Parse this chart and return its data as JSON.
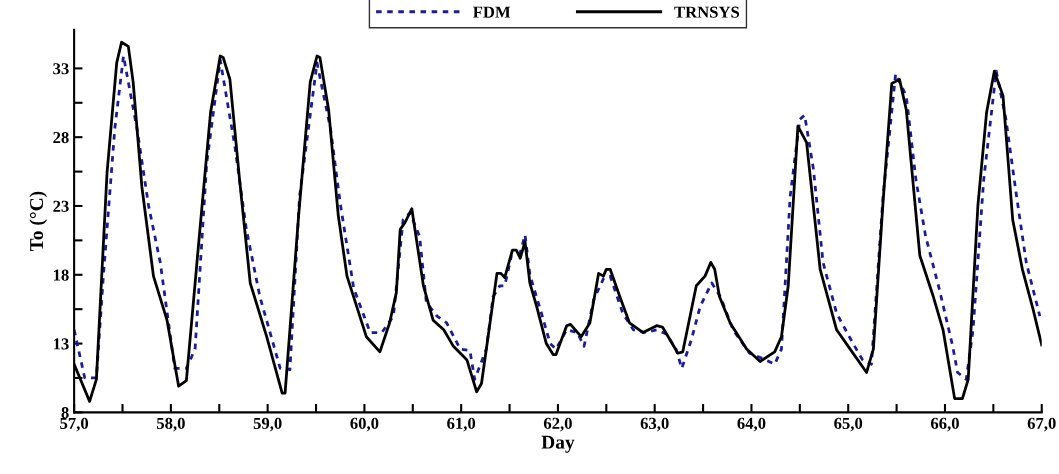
{
  "chart_data": {
    "type": "line",
    "xlabel": "Day",
    "ylabel": "To (°C)",
    "legend": "top",
    "grid": false,
    "xlim": [
      57.0,
      67.0
    ],
    "ylim": [
      8,
      35.8
    ],
    "xticks": [
      {
        "value": 57,
        "label": "57,0"
      },
      {
        "value": 57.5,
        "label": null
      },
      {
        "value": 58,
        "label": "58,0"
      },
      {
        "value": 58.5,
        "label": null
      },
      {
        "value": 59,
        "label": "59,0"
      },
      {
        "value": 59.5,
        "label": null
      },
      {
        "value": 60,
        "label": "60,0"
      },
      {
        "value": 60.5,
        "label": null
      },
      {
        "value": 61,
        "label": "61,0"
      },
      {
        "value": 61.5,
        "label": null
      },
      {
        "value": 62,
        "label": "62,0"
      },
      {
        "value": 62.5,
        "label": null
      },
      {
        "value": 63,
        "label": "63,0"
      },
      {
        "value": 63.5,
        "label": null
      },
      {
        "value": 64,
        "label": "64,0"
      },
      {
        "value": 64.5,
        "label": null
      },
      {
        "value": 65,
        "label": "65,0"
      },
      {
        "value": 65.5,
        "label": null
      },
      {
        "value": 66,
        "label": "66,0"
      },
      {
        "value": 66.5,
        "label": null
      },
      {
        "value": 67,
        "label": "67,0"
      }
    ],
    "yticks": [
      8,
      {
        "value": 10.5,
        "label": null
      },
      13,
      {
        "value": 15.5,
        "label": null
      },
      18,
      {
        "value": 20.5,
        "label": null
      },
      23,
      {
        "value": 25.5,
        "label": null
      },
      28,
      {
        "value": 30.5,
        "label": null
      },
      33
    ],
    "series": [
      {
        "name": "FDM",
        "color": "#1c1c9a",
        "line_style": "dotted",
        "x": [
          57.0,
          57.11,
          57.23,
          57.3,
          57.42,
          57.51,
          57.65,
          57.77,
          57.89,
          58.04,
          58.16,
          58.25,
          58.37,
          58.51,
          58.66,
          58.78,
          58.92,
          59.13,
          59.23,
          59.33,
          59.51,
          59.65,
          59.75,
          59.89,
          60.06,
          60.18,
          60.3,
          60.4,
          60.47,
          60.57,
          60.64,
          60.75,
          60.85,
          60.99,
          61.09,
          61.14,
          61.26,
          61.33,
          61.4,
          61.45,
          61.52,
          61.61,
          61.66,
          61.71,
          61.83,
          61.92,
          61.98,
          62.09,
          62.2,
          62.27,
          62.37,
          62.47,
          62.54,
          62.67,
          62.78,
          62.91,
          63.02,
          63.12,
          63.22,
          63.28,
          63.38,
          63.47,
          63.59,
          63.68,
          63.81,
          63.98,
          64.12,
          64.24,
          64.31,
          64.4,
          64.5,
          64.55,
          64.64,
          64.74,
          64.88,
          65.05,
          65.15,
          65.24,
          65.36,
          65.49,
          65.6,
          65.7,
          65.8,
          65.94,
          66.08,
          66.13,
          66.22,
          66.29,
          66.4,
          66.53,
          66.63,
          66.74,
          66.84,
          66.98
        ],
        "values": [
          14.0,
          10.5,
          10.5,
          17.7,
          28.6,
          33.9,
          28.6,
          23.0,
          18.9,
          11.2,
          11.2,
          12.6,
          26.1,
          33.6,
          27.4,
          21.3,
          16.4,
          11.2,
          11.1,
          23.7,
          33.4,
          28.6,
          23.2,
          17.0,
          13.8,
          13.8,
          15.0,
          22.0,
          22.5,
          20.8,
          16.0,
          15.0,
          14.5,
          12.6,
          12.5,
          10.4,
          12.6,
          16.4,
          17.2,
          17.2,
          19.4,
          19.6,
          20.9,
          18.0,
          15.2,
          13.0,
          12.6,
          14.0,
          13.8,
          12.8,
          16.2,
          17.7,
          17.9,
          15.2,
          14.0,
          13.8,
          14.0,
          13.7,
          12.6,
          11.2,
          13.3,
          15.7,
          17.4,
          16.4,
          14.0,
          12.3,
          11.9,
          11.5,
          12.6,
          23.7,
          29.3,
          29.6,
          25.7,
          18.9,
          15.2,
          13.0,
          11.8,
          11.5,
          23.7,
          32.6,
          31.0,
          24.9,
          20.8,
          17.0,
          12.8,
          10.9,
          10.4,
          14.0,
          24.9,
          32.8,
          29.3,
          23.7,
          18.9,
          15.0
        ]
      },
      {
        "name": "TRNSYS",
        "color": "#000000",
        "line_style": "solid",
        "x": [
          57.0,
          57.16,
          57.23,
          57.34,
          57.44,
          57.49,
          57.56,
          57.61,
          57.7,
          57.82,
          57.96,
          58.08,
          58.16,
          58.3,
          58.41,
          58.51,
          58.54,
          58.61,
          58.71,
          58.82,
          58.99,
          59.15,
          59.18,
          59.32,
          59.44,
          59.51,
          59.54,
          59.63,
          59.73,
          59.82,
          60.02,
          60.16,
          60.26,
          60.33,
          60.37,
          60.42,
          60.49,
          60.61,
          60.71,
          60.82,
          60.92,
          61.06,
          61.16,
          61.21,
          61.37,
          61.41,
          61.45,
          61.53,
          61.57,
          61.61,
          61.66,
          61.71,
          61.78,
          61.88,
          61.95,
          61.98,
          62.09,
          62.13,
          62.24,
          62.33,
          62.42,
          62.47,
          62.5,
          62.54,
          62.64,
          62.74,
          62.88,
          63.02,
          63.08,
          63.24,
          63.29,
          63.43,
          63.52,
          63.58,
          63.62,
          63.67,
          63.78,
          63.95,
          64.09,
          64.24,
          64.31,
          64.38,
          64.48,
          64.57,
          64.71,
          64.88,
          65.02,
          65.19,
          65.26,
          65.36,
          65.45,
          65.53,
          65.6,
          65.74,
          65.88,
          65.98,
          66.1,
          66.18,
          66.24,
          66.34,
          66.43,
          66.51,
          66.6,
          66.7,
          66.8,
          66.91,
          67.0
        ],
        "values": [
          11.5,
          8.8,
          10.4,
          25.4,
          33.4,
          34.9,
          34.6,
          32.0,
          24.4,
          17.9,
          14.7,
          9.9,
          10.3,
          21.3,
          29.8,
          33.9,
          33.8,
          32.2,
          24.9,
          17.4,
          13.5,
          9.4,
          9.4,
          22.3,
          32.0,
          33.9,
          33.8,
          30.0,
          22.3,
          17.9,
          13.5,
          12.4,
          14.5,
          16.7,
          21.3,
          21.8,
          22.8,
          17.2,
          14.7,
          14.0,
          12.8,
          11.8,
          9.5,
          10.1,
          18.1,
          18.1,
          17.8,
          19.8,
          19.8,
          19.2,
          20.4,
          17.4,
          15.7,
          13.0,
          12.2,
          12.2,
          14.3,
          14.4,
          13.5,
          14.5,
          18.1,
          17.9,
          18.4,
          18.4,
          16.4,
          14.5,
          13.8,
          14.3,
          14.2,
          12.3,
          12.4,
          17.2,
          17.9,
          18.9,
          18.4,
          16.4,
          14.5,
          12.6,
          11.7,
          12.4,
          13.5,
          17.2,
          28.8,
          27.6,
          18.4,
          14.0,
          12.6,
          10.9,
          12.6,
          23.3,
          31.9,
          32.2,
          30.0,
          19.4,
          16.4,
          14.0,
          9.0,
          9.0,
          10.4,
          23.0,
          29.8,
          32.8,
          31.0,
          22.0,
          18.4,
          15.5,
          12.9
        ]
      }
    ]
  }
}
